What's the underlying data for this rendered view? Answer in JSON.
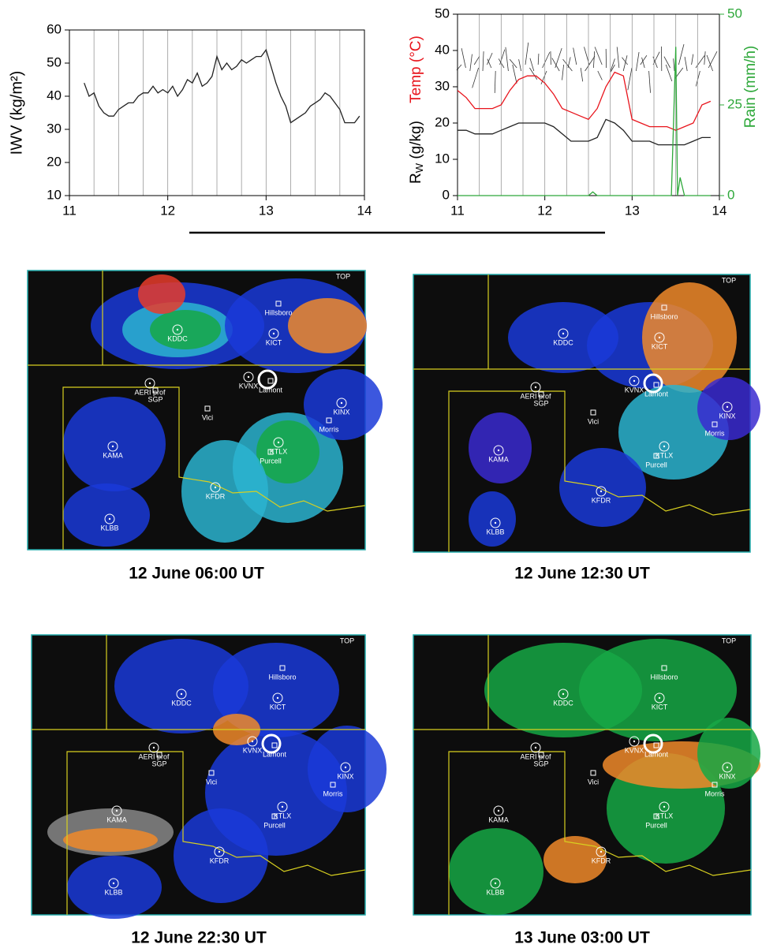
{
  "chart_data": [
    {
      "type": "line",
      "ylabel": "IWV (kg/m²)",
      "x": [
        11.15,
        11.2,
        11.25,
        11.3,
        11.35,
        11.4,
        11.45,
        11.5,
        11.55,
        11.6,
        11.65,
        11.7,
        11.75,
        11.8,
        11.85,
        11.9,
        11.95,
        12.0,
        12.05,
        12.1,
        12.15,
        12.2,
        12.25,
        12.3,
        12.35,
        12.4,
        12.45,
        12.5,
        12.55,
        12.6,
        12.65,
        12.7,
        12.75,
        12.8,
        12.85,
        12.9,
        12.95,
        13.0,
        13.05,
        13.1,
        13.15,
        13.2,
        13.25,
        13.3,
        13.35,
        13.4,
        13.45,
        13.5,
        13.55,
        13.6,
        13.65,
        13.7,
        13.75,
        13.8,
        13.85,
        13.9,
        13.95
      ],
      "series": [
        {
          "color": "#222222",
          "values": [
            44,
            40,
            41,
            37,
            35,
            34,
            34,
            36,
            37,
            38,
            38,
            40,
            41,
            41,
            43,
            41,
            42,
            41,
            43,
            40,
            42,
            45,
            44,
            47,
            43,
            44,
            46,
            52,
            48,
            50,
            48,
            49,
            51,
            50,
            51,
            52,
            52,
            54,
            49,
            44,
            40,
            37,
            32,
            33,
            34,
            35,
            37,
            38,
            39,
            41,
            40,
            38,
            36,
            32,
            32,
            32,
            34
          ]
        }
      ],
      "xlim": [
        11,
        14
      ],
      "xticks": [
        11,
        12,
        13,
        14
      ],
      "ylim": [
        10,
        60
      ],
      "yticks": [
        10,
        20,
        30,
        40,
        50,
        60
      ],
      "xgrid": [
        11.25,
        11.5,
        11.75,
        12,
        12.25,
        12.5,
        12.75,
        13,
        13.25,
        13.5,
        13.75
      ]
    },
    {
      "type": "line",
      "ylabel": "Temp (°C)",
      "ylabel2": "R",
      "ylabel2_sub": "W",
      "ylabel2_rest": " (g/kg)",
      "y2label": "Rain (mm/h)",
      "x": [
        11.0,
        11.1,
        11.2,
        11.3,
        11.4,
        11.5,
        11.6,
        11.7,
        11.8,
        11.9,
        12.0,
        12.1,
        12.2,
        12.3,
        12.4,
        12.5,
        12.6,
        12.7,
        12.8,
        12.9,
        13.0,
        13.1,
        13.2,
        13.3,
        13.4,
        13.5,
        13.6,
        13.7,
        13.8,
        13.9
      ],
      "series": [
        {
          "color": "#e8141c",
          "values": [
            29,
            27,
            24,
            24,
            24,
            25,
            29,
            32,
            33,
            33,
            31,
            28,
            24,
            23,
            22,
            21,
            24,
            30,
            34,
            33,
            21,
            20,
            19,
            19,
            19,
            18,
            19,
            20,
            25,
            26
          ]
        },
        {
          "color": "#222222",
          "values": [
            18,
            18,
            17,
            17,
            17,
            18,
            19,
            20,
            20,
            20,
            20,
            19,
            17,
            15,
            15,
            15,
            16,
            21,
            20,
            18,
            15,
            15,
            15,
            14,
            14,
            14,
            14,
            15,
            16,
            16
          ]
        },
        {
          "color": "#2ea83a",
          "axis": "y2",
          "x": [
            11.0,
            12.5,
            12.55,
            12.6,
            13.45,
            13.5,
            13.52,
            13.55,
            13.6,
            13.7,
            13.9
          ],
          "values": [
            0,
            0,
            1,
            0,
            0,
            41,
            0,
            5,
            0,
            0,
            0
          ]
        }
      ],
      "xlim": [
        11,
        14
      ],
      "xticks": [
        11,
        12,
        13,
        14
      ],
      "ylim": [
        0,
        50
      ],
      "yticks": [
        0,
        10,
        20,
        30,
        40,
        50
      ],
      "y2lim": [
        0,
        50
      ],
      "y2ticks": [
        0,
        25,
        50
      ],
      "xgrid": [
        11.25,
        11.5,
        11.75,
        12,
        12.25,
        12.5,
        12.75,
        13,
        13.25,
        13.5,
        13.75
      ]
    }
  ],
  "stations": [
    "KDDC",
    "Hillsboro",
    "KICT",
    "KVNX",
    "Lamont",
    "AERI prof",
    "SGP",
    "Vici",
    "KINX",
    "Morris",
    "KTLX",
    "Purcell",
    "KAMA",
    "KFDR",
    "KLBB",
    "TOP"
  ],
  "panels": [
    {
      "caption": "12 June 06:00 UT"
    },
    {
      "caption": "12 June 12:30 UT"
    },
    {
      "caption": "12 June 22:30 UT"
    },
    {
      "caption": "13 June 03:00 UT"
    }
  ]
}
